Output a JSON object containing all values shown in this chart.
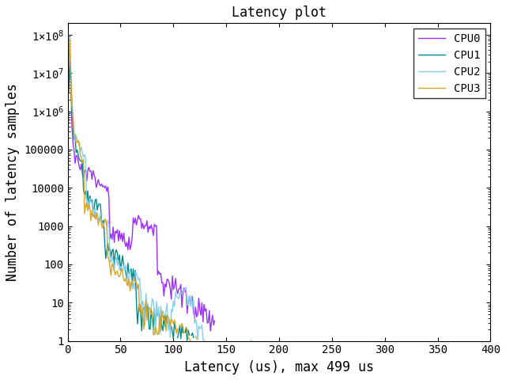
{
  "title": "Latency plot",
  "xlabel": "Latency (us), max 499 us",
  "ylabel": "Number of latency samples",
  "xlim": [
    0,
    400
  ],
  "ylim": [
    1,
    200000000.0
  ],
  "colors": {
    "CPU0": "#9B30FF",
    "CPU1": "#008B8B",
    "CPU2": "#87CEEB",
    "CPU3": "#DAA520"
  },
  "legend_labels": [
    "CPU0",
    "CPU1",
    "CPU2",
    "CPU3"
  ],
  "background_color": "#ffffff",
  "font_family": "DejaVu Sans Mono"
}
